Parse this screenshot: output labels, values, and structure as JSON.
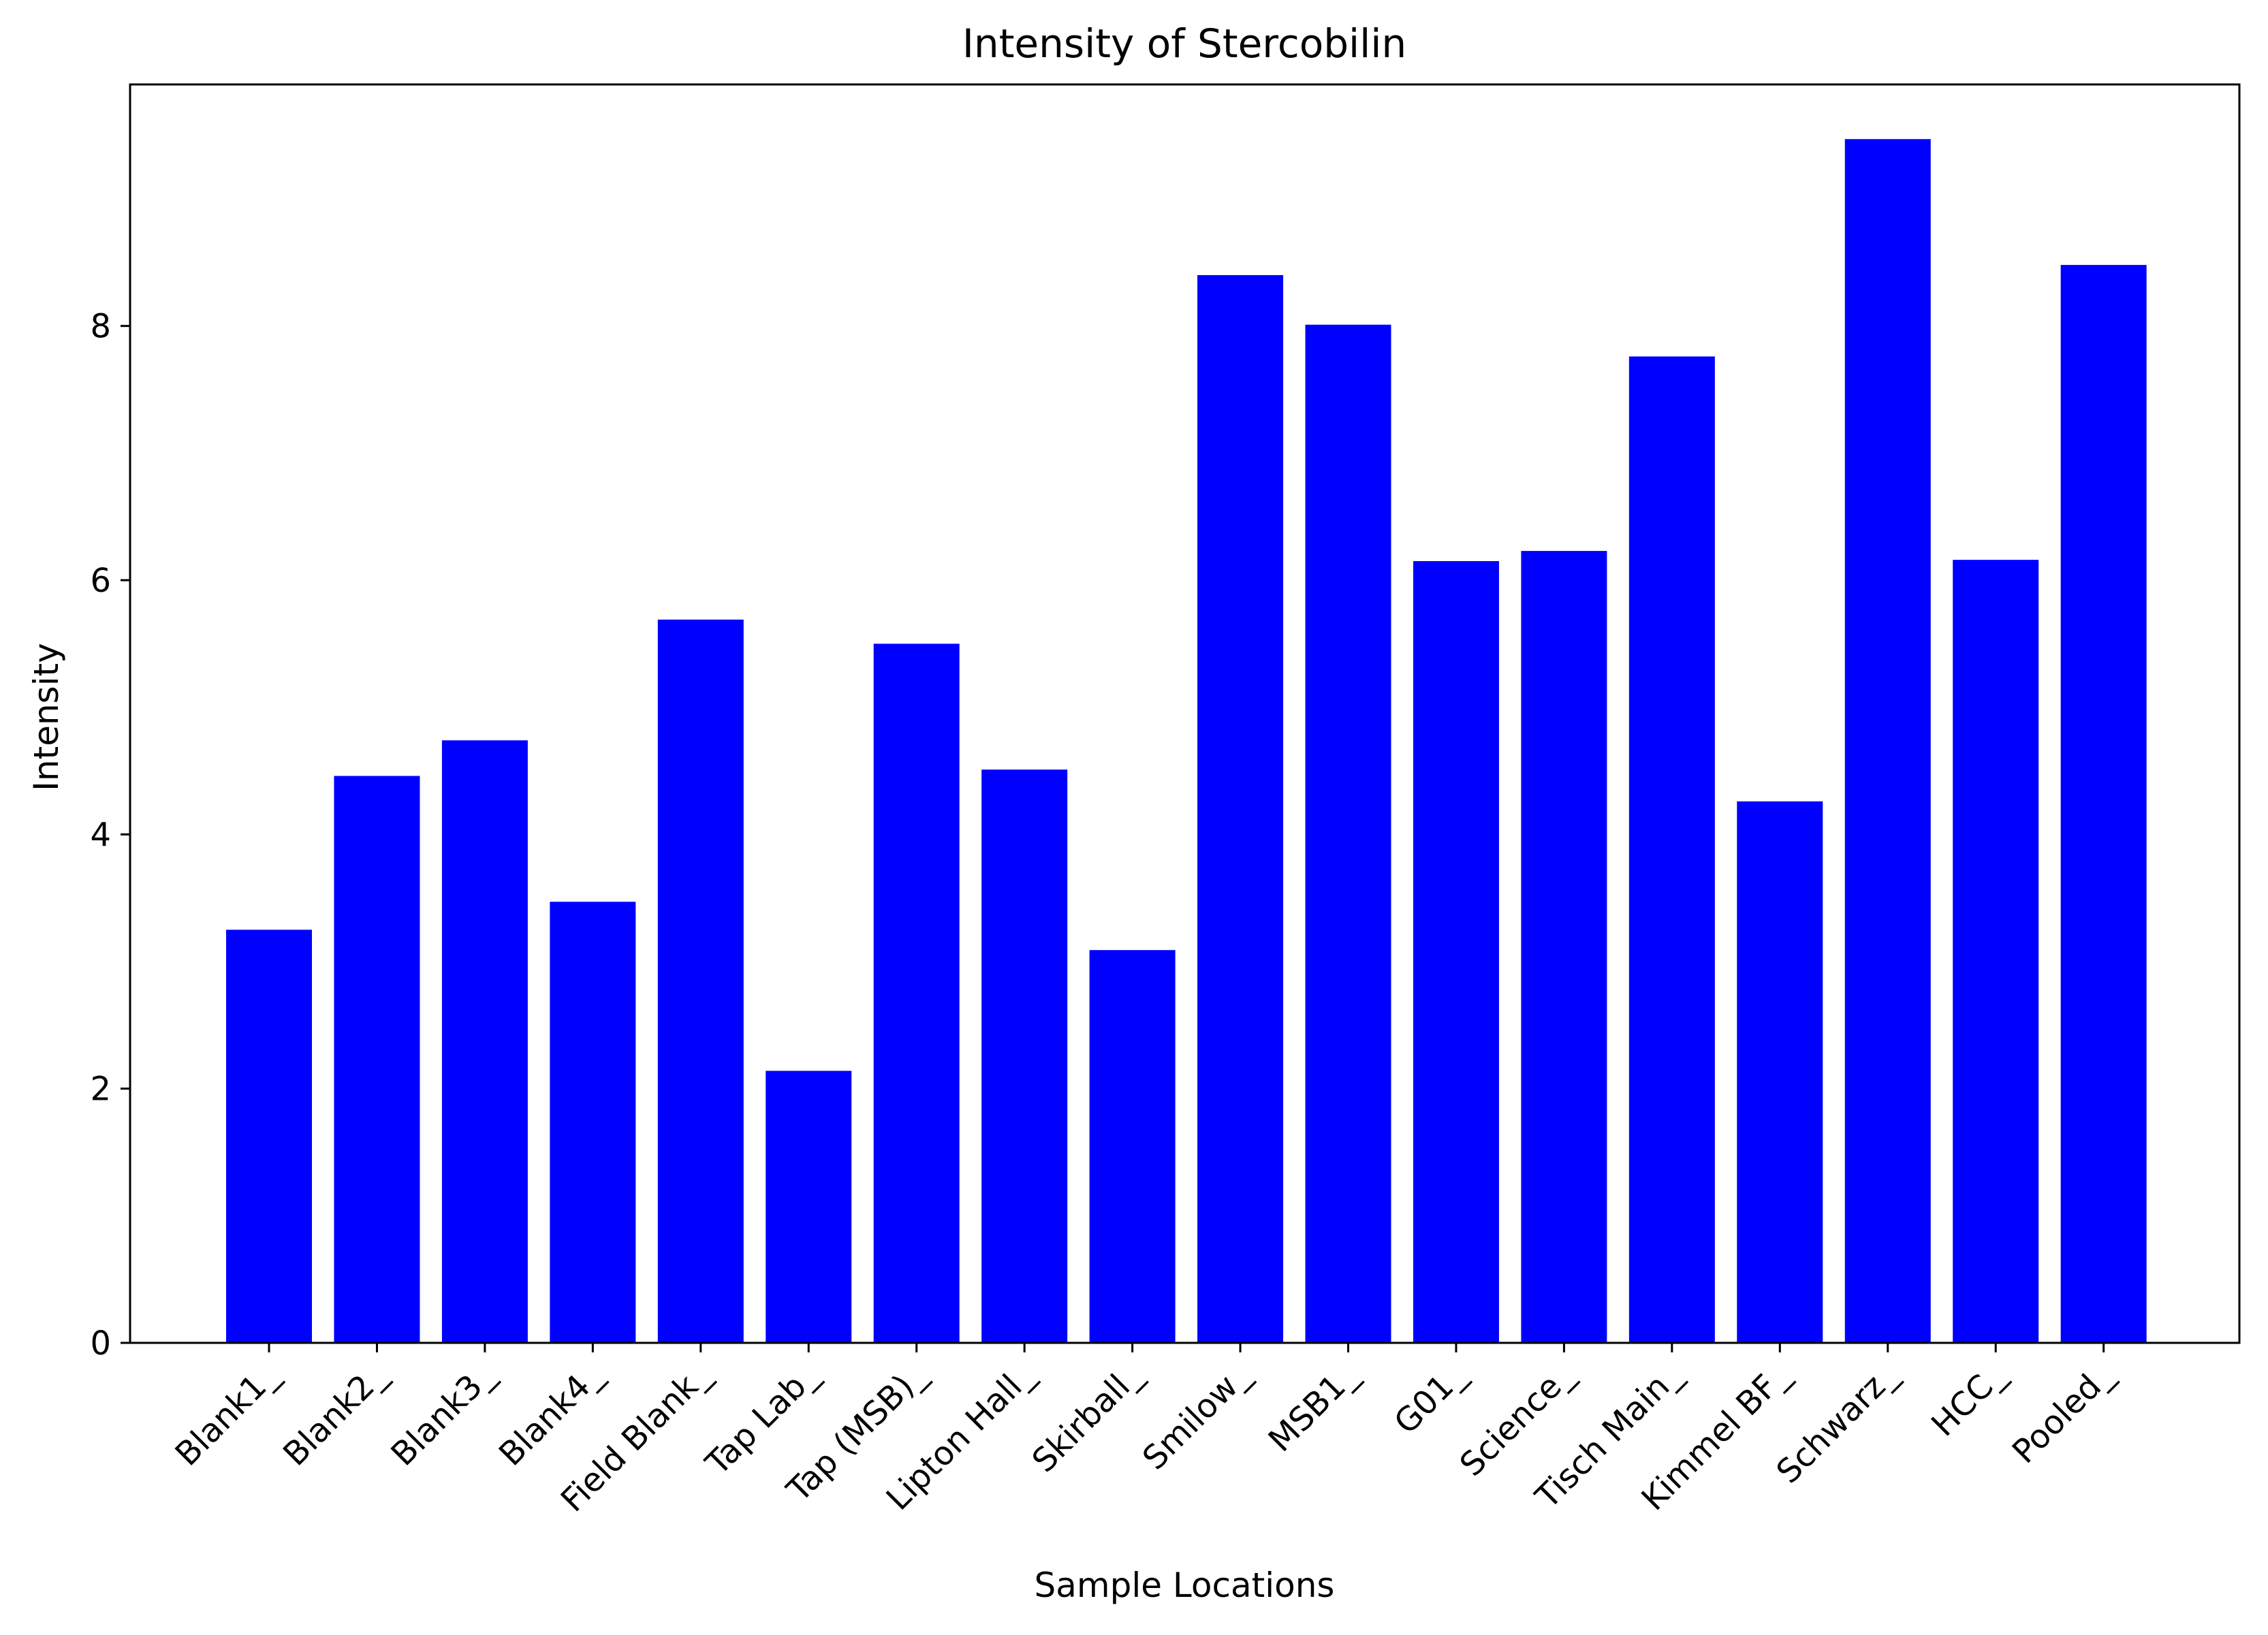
{
  "chart_data": {
    "type": "bar",
    "title": "Intensity of Stercobilin",
    "xlabel": "Sample Locations",
    "ylabel": "Intensity",
    "categories": [
      "Blank1_",
      "Blank2_",
      "Blank3_",
      "Blank4_",
      "Field Blank_",
      "Tap Lab_",
      "Tap (MSB)_",
      "Lipton Hall_",
      "Skirball_",
      "Smilow_",
      "MSB1_",
      "G01_",
      "Science_",
      "Tisch Main_",
      "Kimmel BF_",
      "Schwarz_",
      "HCC_",
      "Pooled_"
    ],
    "values": [
      3.25,
      4.46,
      4.74,
      3.47,
      5.69,
      2.14,
      5.5,
      4.51,
      3.09,
      8.4,
      8.01,
      6.15,
      6.23,
      7.76,
      4.26,
      9.47,
      6.16,
      8.48
    ],
    "ylim": [
      0,
      9.9
    ],
    "yticks": [
      0,
      2,
      4,
      6,
      8
    ],
    "ytick_labels": [
      "0",
      "2",
      "4",
      "6",
      "8"
    ],
    "bar_color": "#0000ff",
    "grid": false,
    "legend": "none"
  }
}
